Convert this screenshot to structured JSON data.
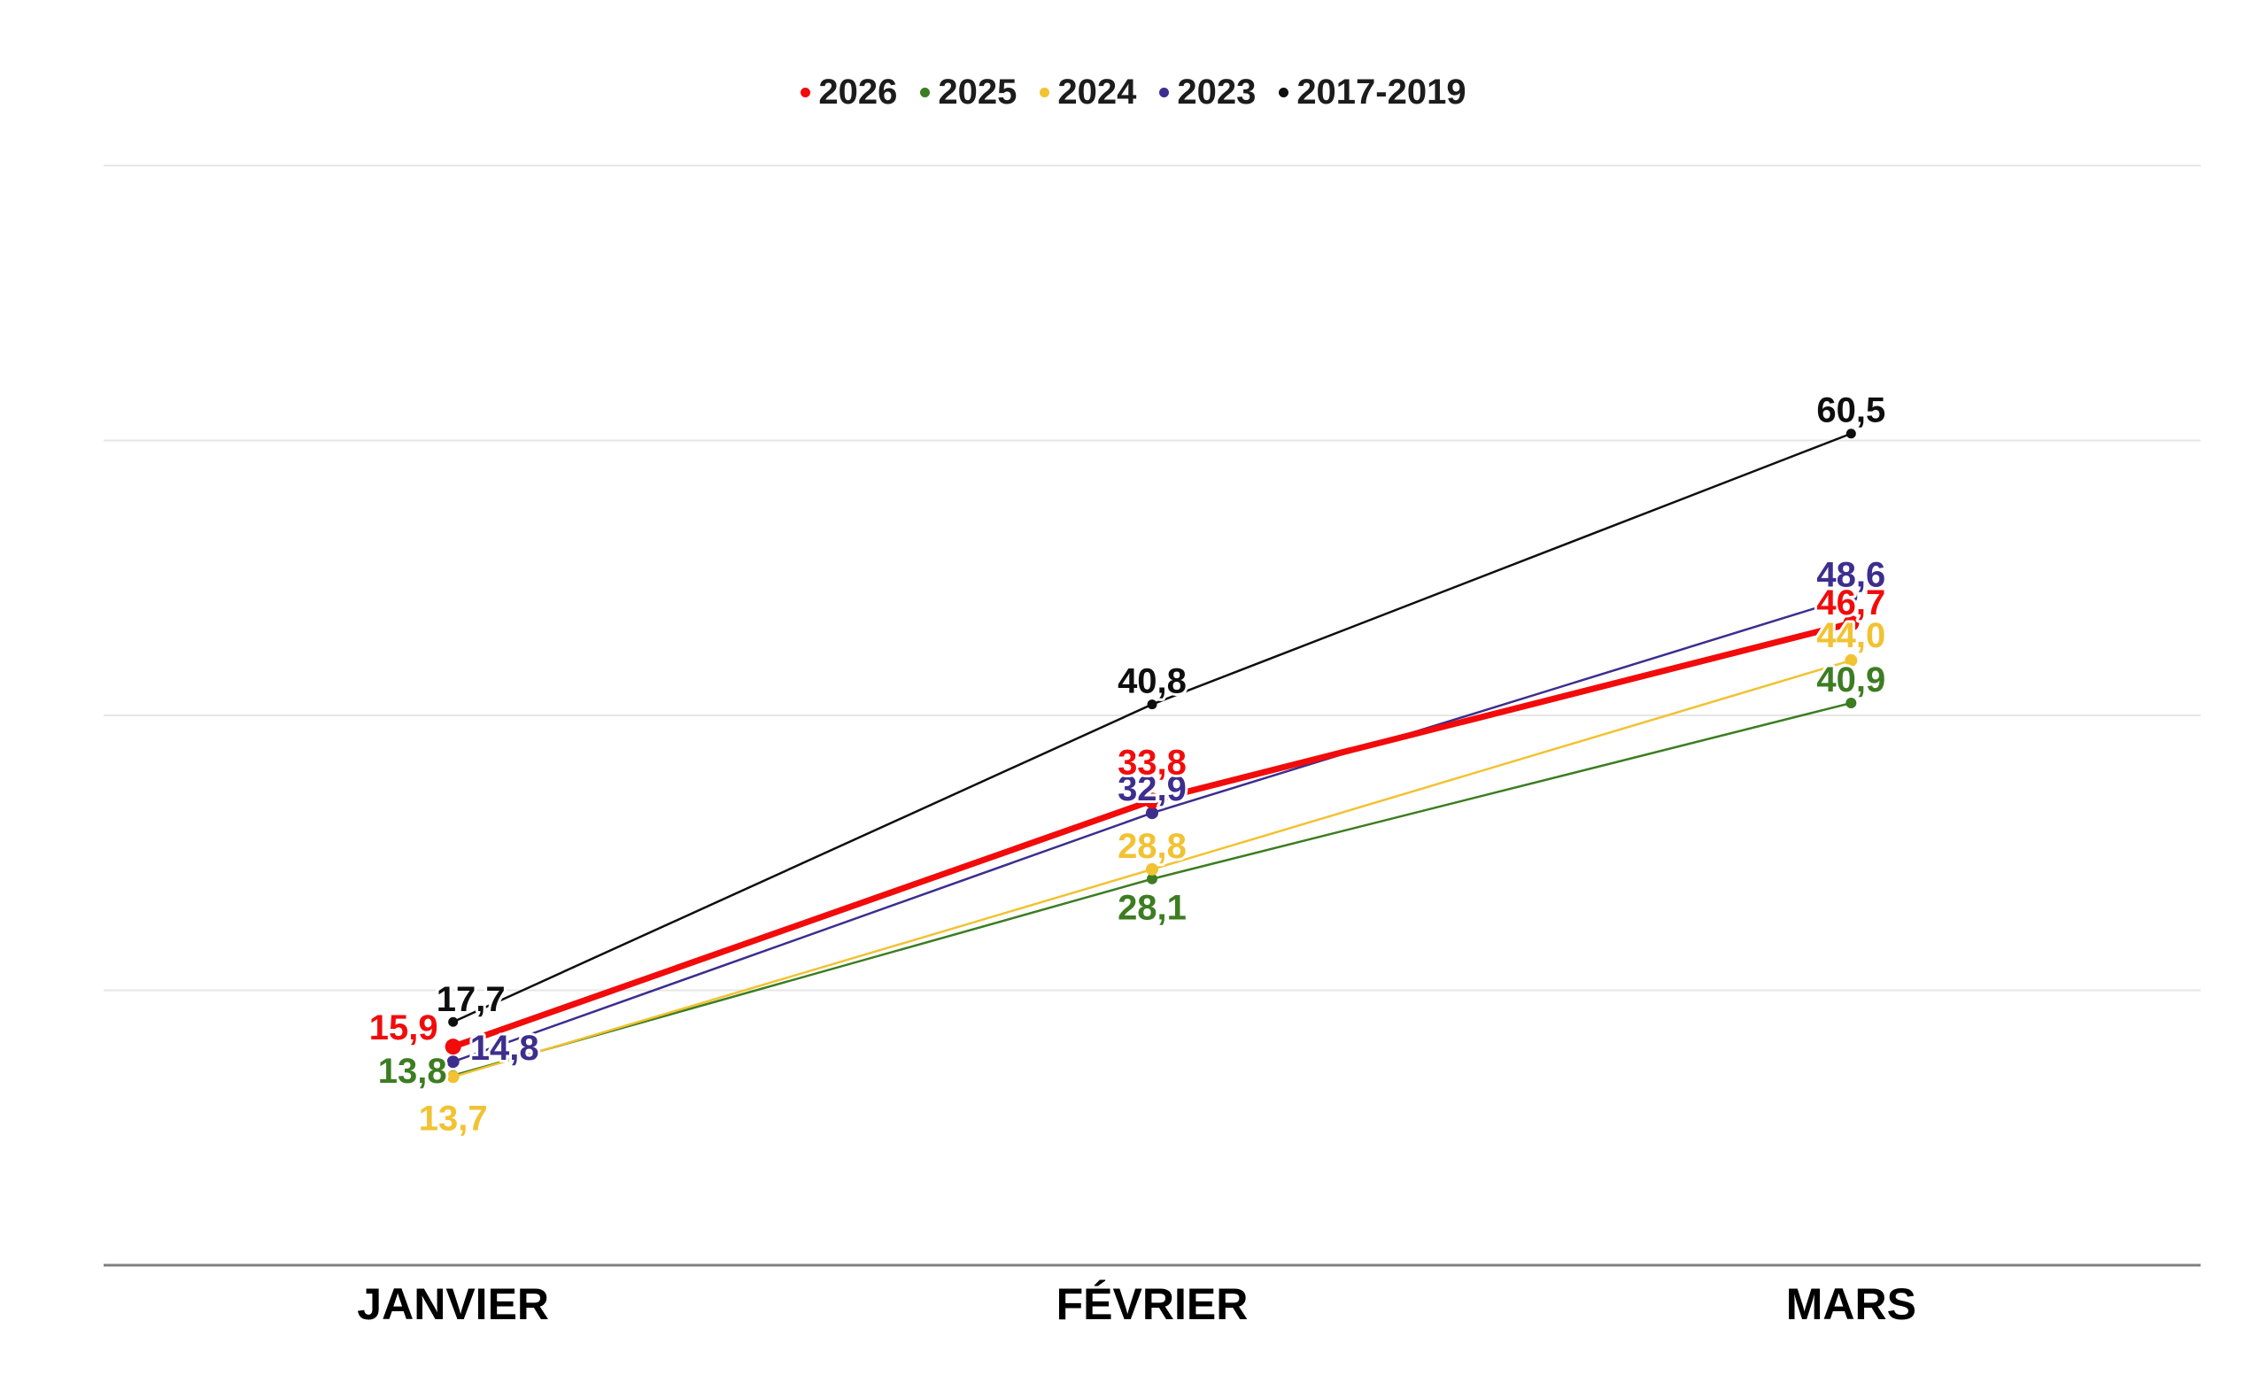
{
  "chart_data": {
    "type": "line",
    "title": "",
    "xlabel": "",
    "ylabel": "",
    "categories": [
      "JANVIER",
      "FÉVRIER",
      "MARS"
    ],
    "series": [
      {
        "name": "2026",
        "color": "#f20b0b",
        "line_width": 7,
        "point_radius": 9,
        "values": [
          15.9,
          33.8,
          46.7
        ],
        "label_offsets": [
          [
            -56,
            -21
          ],
          [
            0,
            -43
          ],
          [
            0,
            -23
          ]
        ]
      },
      {
        "name": "2025",
        "color": "#3c7d22",
        "line_width": 2.5,
        "point_radius": 6,
        "values": [
          13.8,
          28.1,
          40.9
        ],
        "label_offsets": [
          [
            -46,
            -5
          ],
          [
            0,
            33
          ],
          [
            0,
            -26
          ]
        ]
      },
      {
        "name": "2024",
        "color": "#f1c232",
        "line_width": 2.5,
        "point_radius": 7,
        "values": [
          13.7,
          28.8,
          44.0
        ],
        "label_offsets": [
          [
            0,
            47
          ],
          [
            0,
            -26
          ],
          [
            0,
            -28
          ]
        ]
      },
      {
        "name": "2023",
        "color": "#3d2e8e",
        "line_width": 2.5,
        "point_radius": 7,
        "values": [
          14.8,
          32.9,
          48.6
        ],
        "label_offsets": [
          [
            58,
            -15
          ],
          [
            0,
            -27
          ],
          [
            0,
            -25
          ]
        ]
      },
      {
        "name": "2017-2019",
        "color": "#0e0e0e",
        "line_width": 2.5,
        "point_radius": 5.5,
        "values": [
          17.7,
          40.8,
          60.5
        ],
        "label_offsets": [
          [
            20,
            -25
          ],
          [
            0,
            -26
          ],
          [
            0,
            -26
          ]
        ]
      }
    ],
    "draw_order": [
      "2017-2019",
      "2023",
      "2025",
      "2024",
      "2026"
    ],
    "ylim": [
      0,
      80
    ],
    "grid": {
      "step": 20,
      "on": true,
      "color": "#e6e6e6",
      "axis_color": "#808080"
    },
    "legend_position": "top",
    "decimal_separator": ","
  }
}
